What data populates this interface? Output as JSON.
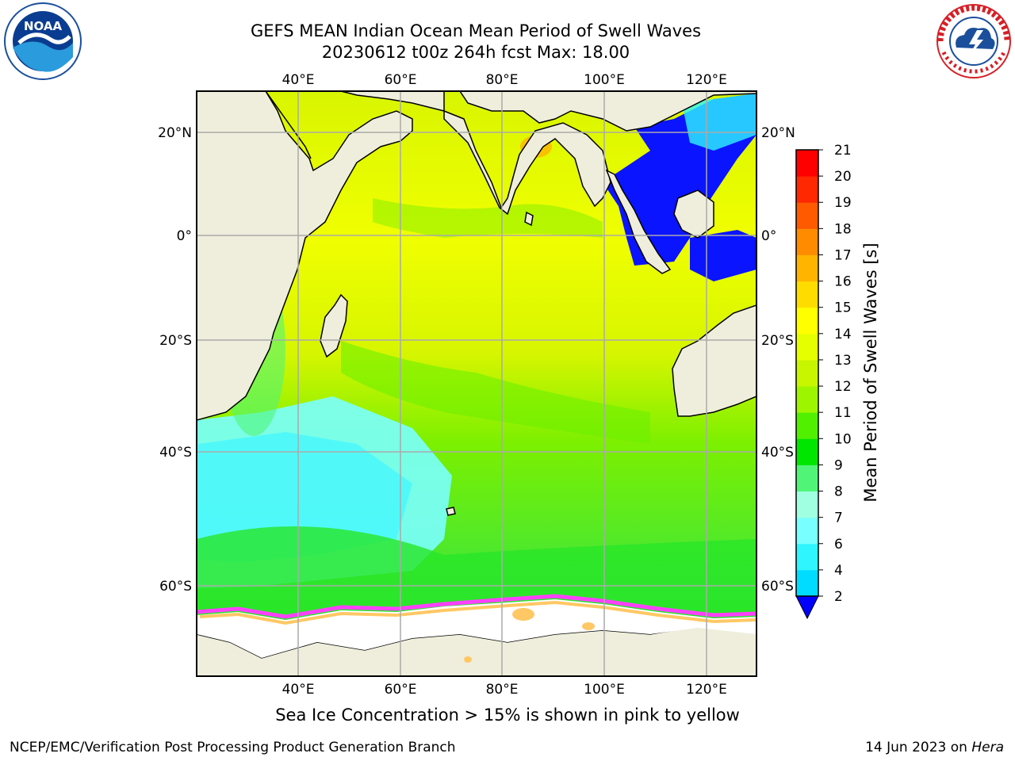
{
  "header": {
    "title_line1": "GEFS MEAN Indian Ocean Mean Period of Swell Waves",
    "title_line2": "20230612 t00z 264h fcst   Max: 18.00"
  },
  "logos": {
    "left": {
      "name": "noaa-logo",
      "text": "NOAA",
      "ring_text": "NATIONAL OCEANIC AND ATMOSPHERIC ADMINISTRATION · U.S. DEPARTMENT OF COMMERCE"
    },
    "right": {
      "name": "nws-logo",
      "ring_text": "NATIONAL WEATHER SERVICE"
    }
  },
  "map": {
    "lon_labels_top": [
      "40°E",
      "60°E",
      "80°E",
      "100°E",
      "120°E"
    ],
    "lon_labels_bottom": [
      "40°E",
      "60°E",
      "80°E",
      "100°E",
      "120°E"
    ],
    "lat_labels_left": [
      "20°N",
      "0°",
      "20°S",
      "40°S",
      "60°S"
    ],
    "lat_labels_right": [
      "20°N",
      "0°",
      "20°S",
      "40°S",
      "60°S"
    ],
    "land_color": "#efeedc",
    "ice_color": "#ffffff"
  },
  "colorbar": {
    "label": "Mean Period of Swell Waves [s]",
    "ticks": [
      "2",
      "4",
      "6",
      "7",
      "8",
      "9",
      "10",
      "11",
      "12",
      "13",
      "14",
      "15",
      "16",
      "17",
      "18",
      "19",
      "20",
      "21"
    ],
    "colors": [
      "#1e64ff",
      "#00dcff",
      "#2ef5ff",
      "#78ffff",
      "#a0ffe0",
      "#50f578",
      "#00e600",
      "#50f000",
      "#9ef500",
      "#c8f500",
      "#e6ff00",
      "#ffff00",
      "#ffdc00",
      "#ffb400",
      "#ff8c00",
      "#ff5a00",
      "#ff2800",
      "#ff0000"
    ],
    "under_color": "#0000ff"
  },
  "caption": "Sea Ice Concentration > 15% is shown in pink to yellow",
  "footer": {
    "left": "NCEP/EMC/Verification Post Processing Product Generation Branch",
    "right_prefix": "14 Jun 2023 on ",
    "right_host": "Hera"
  }
}
